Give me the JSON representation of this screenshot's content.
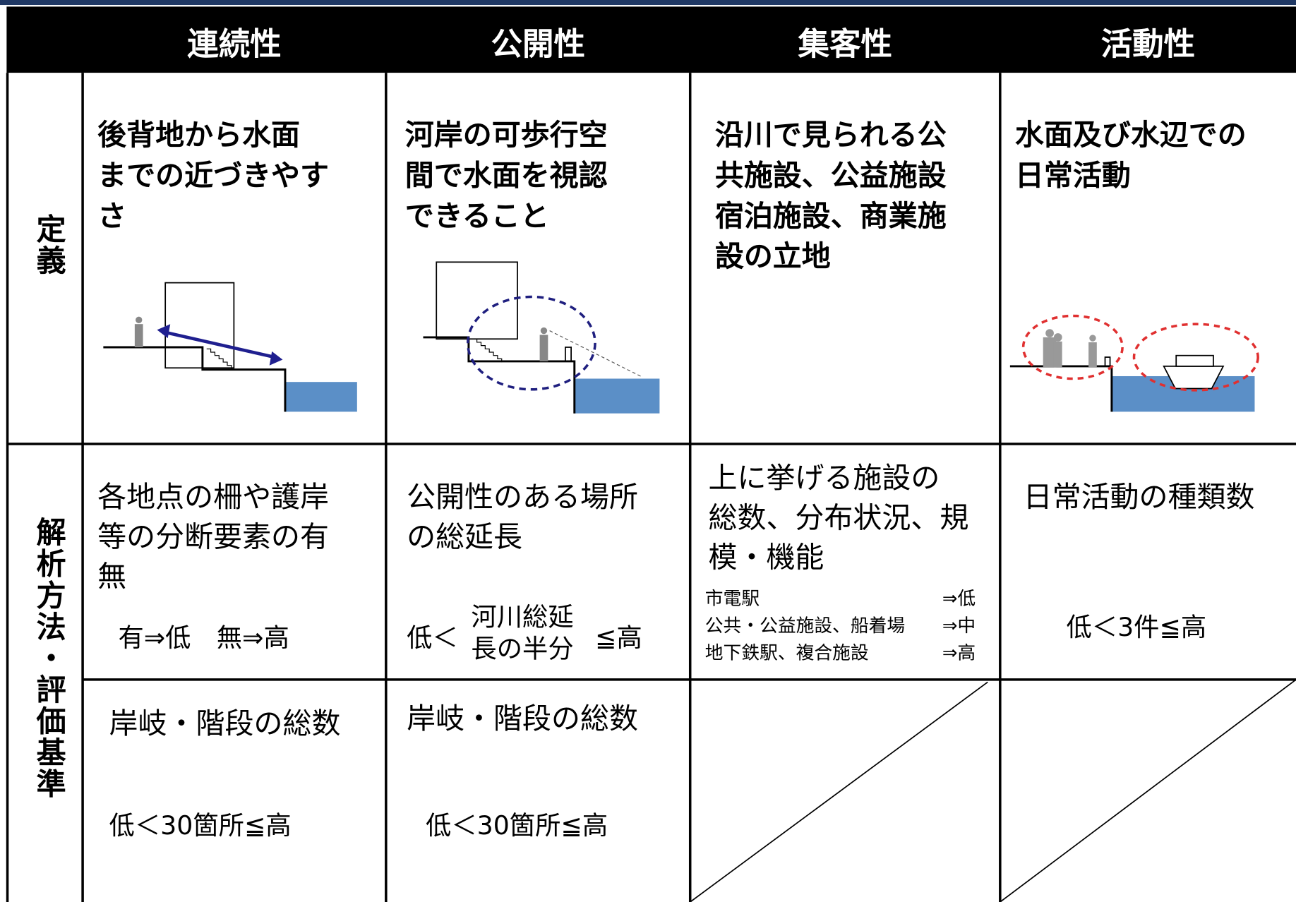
{
  "header": {
    "columns": [
      "連続性",
      "公開性",
      "集客性",
      "活動性"
    ]
  },
  "row_labels": [
    "定義",
    "解析方法・評価基準"
  ],
  "definitions": [
    {
      "lines": [
        "後背地から水面",
        "までの近づきやす",
        "さ"
      ]
    },
    {
      "lines": [
        "河岸の可歩行空",
        "間で水面を視認",
        "できること"
      ]
    },
    {
      "lines": [
        "沿川で見られる公",
        "共施設、公益施設",
        "宿泊施設、商業施",
        "設の立地"
      ]
    },
    {
      "lines": [
        "水面及び水辺での",
        "日常活動"
      ]
    }
  ],
  "analysis": [
    {
      "method": [
        "各地点の柵や護岸",
        "等の分断要素の有",
        "無"
      ],
      "criteria": "有⇒低　無⇒高"
    },
    {
      "method": [
        "公開性のある場所",
        "の総延長"
      ],
      "criteria": {
        "left": "低＜",
        "fraction": [
          "河川総延",
          "長の半分"
        ],
        "right": "≦高"
      }
    },
    {
      "method": [
        "上に挙げる施設の",
        "総数、分布状況、規",
        "模・機能"
      ],
      "criteria": [
        [
          "市電駅",
          "⇒低"
        ],
        [
          "公共・公益施設、船着場",
          "⇒中"
        ],
        [
          "地下鉄駅、複合施設",
          "⇒高"
        ]
      ]
    },
    {
      "method": [
        "日常活動の種類数"
      ],
      "criteria": "低＜3件≦高"
    }
  ],
  "count_row": [
    {
      "method": "岸岐・階段の総数",
      "criteria": "低＜30箇所≦高"
    },
    {
      "method": "岸岐・階段の総数",
      "criteria": "低＜30箇所≦高"
    }
  ]
}
